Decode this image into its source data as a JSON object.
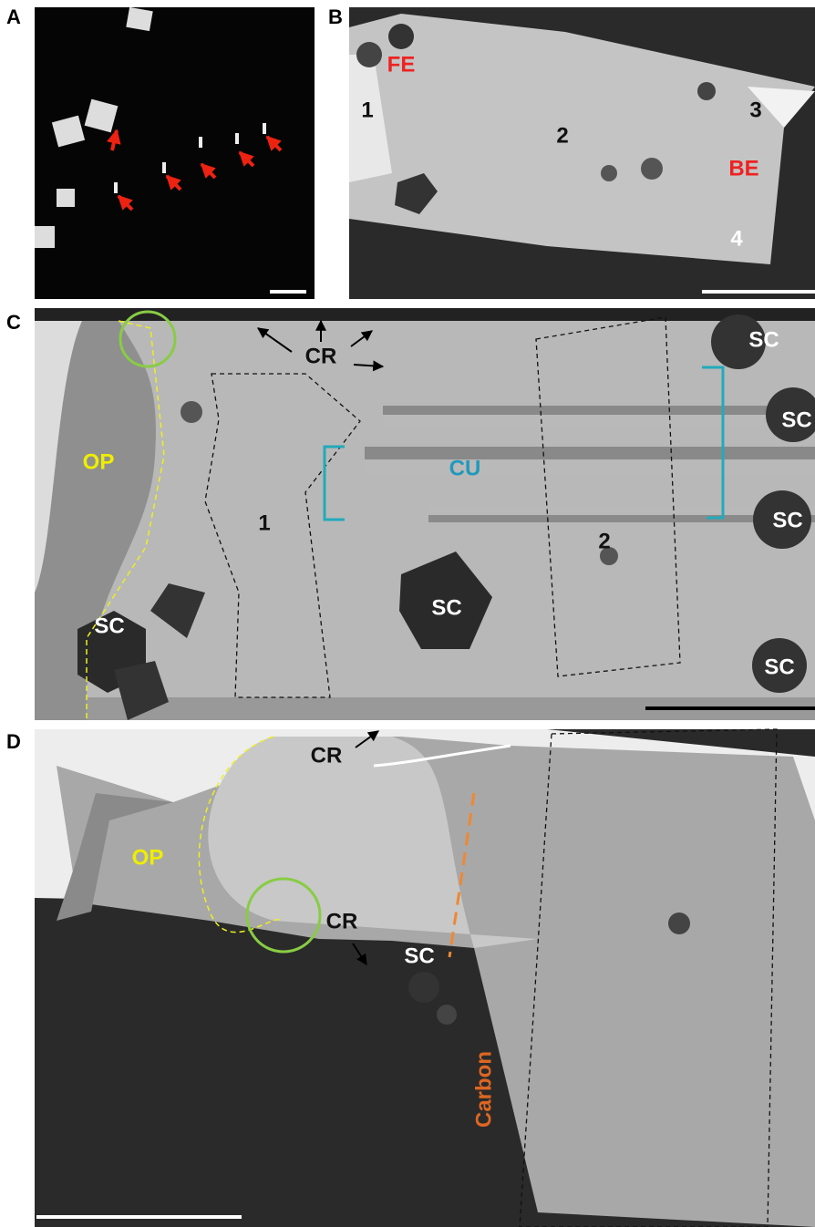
{
  "panels": [
    {
      "label": "A",
      "annotations": []
    },
    {
      "label": "B",
      "annotations": [
        {
          "text": "FE"
        },
        {
          "text": "1"
        },
        {
          "text": "2"
        },
        {
          "text": "3"
        },
        {
          "text": "BE"
        },
        {
          "text": "4"
        }
      ]
    },
    {
      "label": "C",
      "annotations": [
        {
          "text": "CR"
        },
        {
          "text": "CU"
        },
        {
          "text": "OP"
        },
        {
          "text": "1"
        },
        {
          "text": "2"
        },
        {
          "text": "SC"
        },
        {
          "text": "SC"
        },
        {
          "text": "SC"
        },
        {
          "text": "SC"
        },
        {
          "text": "SC"
        },
        {
          "text": "SC"
        }
      ]
    },
    {
      "label": "D",
      "annotations": [
        {
          "text": "CR"
        },
        {
          "text": "OP"
        },
        {
          "text": "SC"
        },
        {
          "text": "CR"
        },
        {
          "text": "Carbon"
        }
      ]
    }
  ]
}
